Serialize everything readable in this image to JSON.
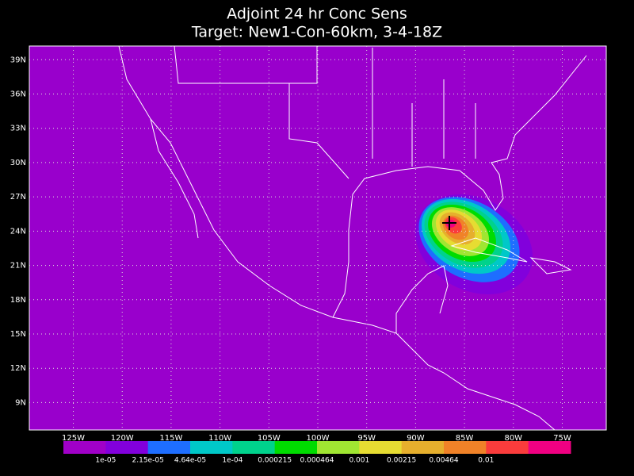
{
  "title": [
    "Adjoint 24 hr Conc Sens",
    "Target: New1-Con-60km, 3-4-18Z"
  ],
  "map": {
    "background": "#9900cc",
    "grid": true,
    "lonlim": [
      -129.5,
      -70.5
    ],
    "latlim": [
      6.6,
      40.2
    ],
    "lat_ticks": [
      {
        "value": 39,
        "label": "39N"
      },
      {
        "value": 36,
        "label": "36N"
      },
      {
        "value": 33,
        "label": "33N"
      },
      {
        "value": 30,
        "label": "30N"
      },
      {
        "value": 27,
        "label": "27N"
      },
      {
        "value": 24,
        "label": "24N"
      },
      {
        "value": 21,
        "label": "21N"
      },
      {
        "value": 18,
        "label": "18N"
      },
      {
        "value": 15,
        "label": "15N"
      },
      {
        "value": 12,
        "label": "12N"
      },
      {
        "value": 9,
        "label": "9N"
      }
    ],
    "lon_ticks": [
      {
        "value": -125,
        "label": "125W"
      },
      {
        "value": -120,
        "label": "120W"
      },
      {
        "value": -115,
        "label": "115W"
      },
      {
        "value": -110,
        "label": "110W"
      },
      {
        "value": -105,
        "label": "105W"
      },
      {
        "value": -100,
        "label": "100W"
      },
      {
        "value": -95,
        "label": "95W"
      },
      {
        "value": -90,
        "label": "90W"
      },
      {
        "value": -85,
        "label": "85W"
      },
      {
        "value": -80,
        "label": "80W"
      },
      {
        "value": -75,
        "label": "75W"
      }
    ]
  },
  "colorbar": {
    "colors": [
      "#a000c8",
      "#8200dc",
      "#1e6eff",
      "#00c8c8",
      "#00d28c",
      "#00dc00",
      "#a0e632",
      "#e6dc32",
      "#e6af2d",
      "#f08228",
      "#fa3c3c",
      "#f00082"
    ],
    "labels": [
      {
        "value": 1e-05,
        "label": "1e-05"
      },
      {
        "value": 2.15e-05,
        "label": "2.15e-05"
      },
      {
        "value": 4.64e-05,
        "label": "4.64e-05"
      },
      {
        "value": 0.0001,
        "label": "1e-04"
      },
      {
        "value": 0.000215,
        "label": "0.000215"
      },
      {
        "value": 0.000464,
        "label": "0.000464"
      },
      {
        "value": 0.001,
        "label": "0.001"
      },
      {
        "value": 0.00215,
        "label": "0.00215"
      },
      {
        "value": 0.00464,
        "label": "0.00464"
      },
      {
        "value": 0.01,
        "label": "0.01"
      }
    ]
  }
}
